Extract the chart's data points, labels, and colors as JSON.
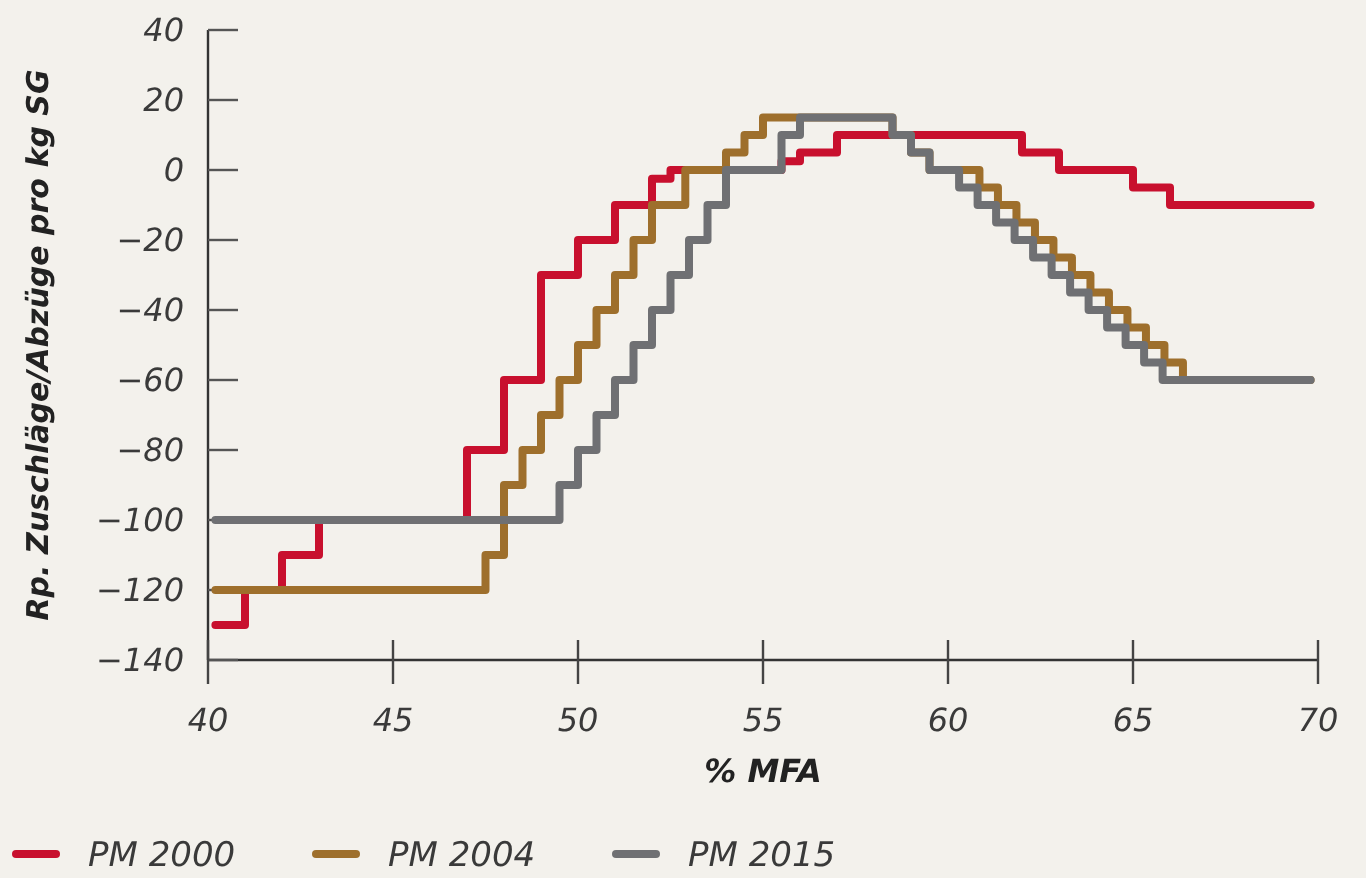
{
  "chart_data": {
    "type": "step",
    "xlabel": "% MFA",
    "ylabel": "Rp. Zuschläge/Abzüge pro kg SG",
    "xlim": [
      40,
      70
    ],
    "ylim": [
      -140,
      40
    ],
    "xticks": [
      40,
      45,
      50,
      55,
      60,
      65,
      70
    ],
    "yticks": [
      -140,
      -120,
      -100,
      -80,
      -60,
      -40,
      -20,
      0,
      20,
      40
    ],
    "grid": false,
    "legend": "bottom",
    "marker": "none",
    "line_style": "solid",
    "series": [
      {
        "name": "PM 2000",
        "color": "#c8102e",
        "x": [
          40.2,
          41,
          42,
          43,
          47,
          48,
          49,
          50,
          51,
          52,
          52.5,
          55.5,
          56,
          57,
          62,
          63,
          65,
          66,
          69.8
        ],
        "values": [
          -130,
          -120,
          -110,
          -100,
          -80,
          -60,
          -30,
          -20,
          -10,
          -2.5,
          0,
          2.5,
          5,
          10,
          5,
          0,
          -5,
          -10,
          -10
        ]
      },
      {
        "name": "PM 2004",
        "color": "#9e6f2c",
        "x": [
          40.2,
          47.5,
          48,
          48.5,
          49,
          49.5,
          50,
          50.5,
          51,
          51.5,
          52,
          52.9,
          54,
          54.5,
          55,
          58.5,
          59,
          59.5,
          60.85,
          61.35,
          61.85,
          62.35,
          62.85,
          63.35,
          63.85,
          64.35,
          64.85,
          65.35,
          65.85,
          66.35,
          69.8
        ],
        "values": [
          -120,
          -110,
          -90,
          -80,
          -70,
          -60,
          -50,
          -40,
          -30,
          -20,
          -10,
          0,
          5,
          10,
          15,
          10,
          5,
          0,
          -5,
          -10,
          -15,
          -20,
          -25,
          -30,
          -35,
          -40,
          -45,
          -50,
          -55,
          -60,
          -60
        ]
      },
      {
        "name": "PM 2015",
        "color": "#6f7073",
        "x": [
          40.2,
          49.5,
          50,
          50.5,
          51,
          51.5,
          52,
          52.5,
          53,
          53.5,
          54,
          55.5,
          56,
          58.5,
          59,
          59.5,
          60.3,
          60.8,
          61.3,
          61.8,
          62.3,
          62.8,
          63.3,
          63.8,
          64.3,
          64.8,
          65.3,
          65.8,
          69.8
        ],
        "values": [
          -100,
          -90,
          -80,
          -70,
          -60,
          -50,
          -40,
          -30,
          -20,
          -10,
          0,
          10,
          15,
          10,
          5,
          0,
          -5,
          -10,
          -15,
          -20,
          -25,
          -30,
          -35,
          -40,
          -45,
          -50,
          -55,
          -60,
          -60
        ]
      }
    ]
  }
}
